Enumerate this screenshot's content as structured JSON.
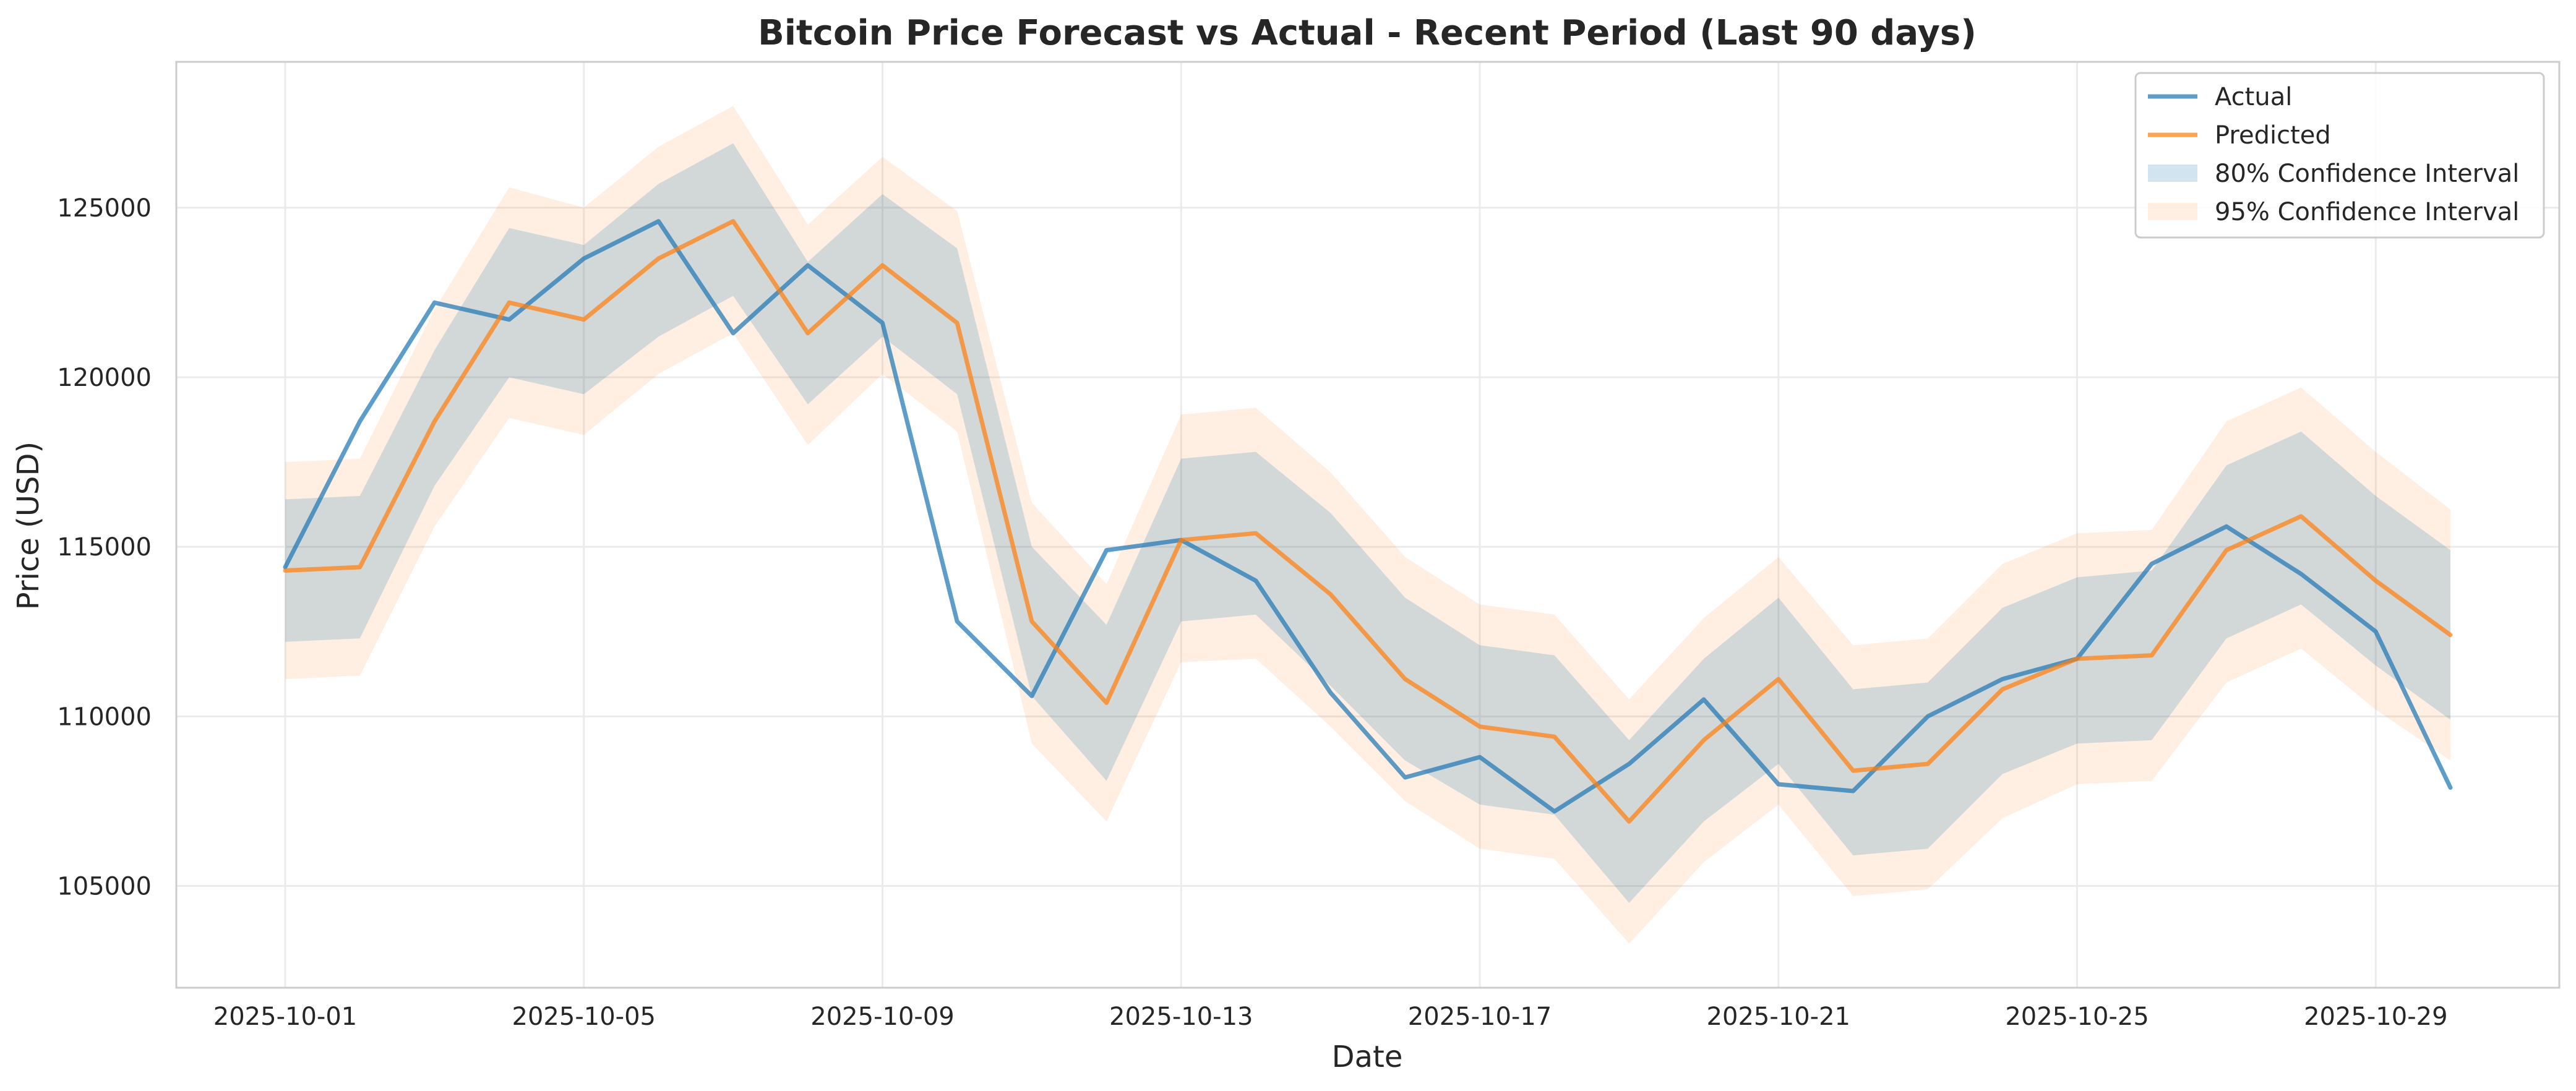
{
  "chart_data": {
    "type": "line",
    "title": "Bitcoin Price Forecast vs Actual - Recent Period (Last 90 days)",
    "xlabel": "Date",
    "ylabel": "Price (USD)",
    "x": [
      "2025-10-01",
      "2025-10-02",
      "2025-10-03",
      "2025-10-04",
      "2025-10-05",
      "2025-10-06",
      "2025-10-07",
      "2025-10-08",
      "2025-10-09",
      "2025-10-10",
      "2025-10-11",
      "2025-10-12",
      "2025-10-13",
      "2025-10-14",
      "2025-10-15",
      "2025-10-16",
      "2025-10-17",
      "2025-10-18",
      "2025-10-19",
      "2025-10-20",
      "2025-10-21",
      "2025-10-22",
      "2025-10-23",
      "2025-10-24",
      "2025-10-25",
      "2025-10-26",
      "2025-10-27",
      "2025-10-28",
      "2025-10-29",
      "2025-10-30"
    ],
    "x_ticks": [
      "2025-10-01",
      "2025-10-05",
      "2025-10-09",
      "2025-10-13",
      "2025-10-17",
      "2025-10-21",
      "2025-10-25",
      "2025-10-29"
    ],
    "y_ticks": [
      105000,
      110000,
      115000,
      120000,
      125000
    ],
    "ylim": [
      102000,
      129300
    ],
    "xlim": [
      "2025-09-29 13:00",
      "2025-10-31 11:00"
    ],
    "grid": true,
    "legend_position": "top-right",
    "series": [
      {
        "name": "Actual",
        "color": "#1f77b4",
        "values": [
          114400,
          118700,
          122200,
          121700,
          123500,
          124600,
          121300,
          123300,
          121600,
          112800,
          110600,
          114900,
          115200,
          114000,
          110700,
          108200,
          108800,
          107200,
          108600,
          110500,
          108000,
          107800,
          110000,
          111100,
          111700,
          114500,
          115600,
          114200,
          112500,
          107900
        ]
      },
      {
        "name": "Predicted",
        "color": "#ff7f0e",
        "values": [
          114300,
          114400,
          118700,
          122200,
          121700,
          123500,
          124600,
          121300,
          123300,
          121600,
          112800,
          110400,
          115200,
          115400,
          113600,
          111100,
          109700,
          109400,
          106900,
          109300,
          111100,
          108400,
          108600,
          110800,
          111700,
          111800,
          114900,
          115900,
          114000,
          112400
        ]
      }
    ],
    "bands": [
      {
        "name": "80% Confidence Interval",
        "color": "#1f77b4",
        "lower": [
          112200,
          112300,
          116800,
          120000,
          119500,
          121200,
          122400,
          119200,
          121200,
          119500,
          110600,
          108100,
          112800,
          113000,
          110900,
          108700,
          107400,
          107100,
          104500,
          106900,
          108600,
          105900,
          106100,
          108300,
          109200,
          109300,
          112300,
          113300,
          111500,
          109900
        ],
        "upper": [
          116400,
          116500,
          120800,
          124400,
          123900,
          125700,
          126900,
          123400,
          125400,
          123800,
          115000,
          112700,
          117600,
          117800,
          116000,
          113500,
          112100,
          111800,
          109300,
          111700,
          113500,
          110800,
          111000,
          113200,
          114100,
          114300,
          117400,
          118400,
          116500,
          114900
        ]
      },
      {
        "name": "95% Confidence Interval",
        "color": "#ff7f0e",
        "lower": [
          111100,
          111200,
          115600,
          118800,
          118300,
          120100,
          121300,
          118000,
          120100,
          118400,
          109200,
          106900,
          111600,
          111700,
          109700,
          107500,
          106100,
          105800,
          103300,
          105700,
          107400,
          104700,
          104900,
          107000,
          108000,
          108100,
          111000,
          112000,
          110200,
          108700
        ],
        "upper": [
          117500,
          117600,
          122000,
          125600,
          125000,
          126800,
          128000,
          124500,
          126500,
          124900,
          116300,
          113900,
          118900,
          119100,
          117200,
          114700,
          113300,
          113000,
          110500,
          112900,
          114700,
          112100,
          112300,
          114500,
          115400,
          115500,
          118700,
          119700,
          117800,
          116100
        ]
      }
    ]
  }
}
